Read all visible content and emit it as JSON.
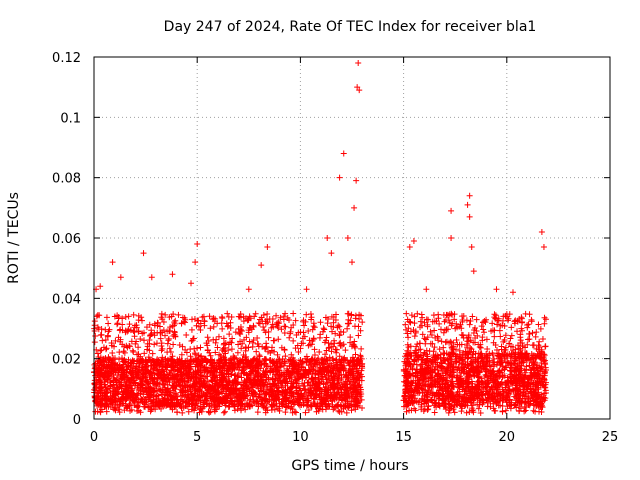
{
  "chart_data": {
    "type": "scatter",
    "title": "Day 247 of 2024, Rate Of TEC Index for receiver bla1",
    "xlabel": "GPS time / hours",
    "ylabel": "ROTI / TECUs",
    "xlim": [
      0,
      25
    ],
    "ylim": [
      0,
      0.12
    ],
    "xticks": [
      0,
      5,
      10,
      15,
      20,
      25
    ],
    "yticks": [
      0,
      0.02,
      0.04,
      0.06,
      0.08,
      0.1,
      0.12
    ],
    "xtick_labels": [
      "0",
      "5",
      "10",
      "15",
      "20",
      "25"
    ],
    "ytick_labels": [
      "0",
      "0.02",
      "0.04",
      "0.06",
      "0.08",
      "0.1",
      "0.12"
    ],
    "grid": true,
    "marker": "+",
    "color": "#ff0000",
    "data_gap_hours": [
      13.0,
      15.0
    ],
    "series": [
      {
        "points": [
          [
            0.1,
            0.043
          ],
          [
            0.3,
            0.044
          ],
          [
            0.9,
            0.052
          ],
          [
            1.3,
            0.047
          ],
          [
            2.4,
            0.055
          ],
          [
            2.8,
            0.047
          ],
          [
            3.8,
            0.048
          ],
          [
            4.7,
            0.045
          ],
          [
            4.9,
            0.052
          ],
          [
            5.0,
            0.058
          ],
          [
            7.5,
            0.043
          ],
          [
            8.1,
            0.051
          ],
          [
            8.4,
            0.057
          ],
          [
            9.2,
            0.033
          ],
          [
            10.3,
            0.043
          ],
          [
            11.3,
            0.06
          ],
          [
            11.5,
            0.055
          ],
          [
            11.9,
            0.08
          ],
          [
            12.1,
            0.088
          ],
          [
            12.3,
            0.06
          ],
          [
            12.5,
            0.052
          ],
          [
            12.6,
            0.07
          ],
          [
            12.7,
            0.079
          ],
          [
            12.75,
            0.11
          ],
          [
            12.8,
            0.118
          ],
          [
            12.85,
            0.109
          ],
          [
            15.3,
            0.057
          ],
          [
            15.5,
            0.059
          ],
          [
            16.1,
            0.043
          ],
          [
            17.3,
            0.069
          ],
          [
            17.3,
            0.06
          ],
          [
            18.1,
            0.071
          ],
          [
            18.2,
            0.074
          ],
          [
            18.2,
            0.067
          ],
          [
            18.3,
            0.057
          ],
          [
            18.4,
            0.049
          ],
          [
            19.5,
            0.043
          ],
          [
            20.3,
            0.042
          ],
          [
            21.7,
            0.062
          ],
          [
            21.8,
            0.057
          ]
        ]
      }
    ],
    "bulk_envelope": {
      "segments": [
        {
          "x_range": [
            0.0,
            13.0
          ],
          "y_min": 0.002,
          "y_typical": [
            0.004,
            0.02
          ],
          "y_upper_typical": 0.035
        },
        {
          "x_range": [
            15.0,
            21.9
          ],
          "y_min": 0.002,
          "y_typical": [
            0.004,
            0.022
          ],
          "y_upper_typical": 0.035
        }
      ]
    }
  }
}
